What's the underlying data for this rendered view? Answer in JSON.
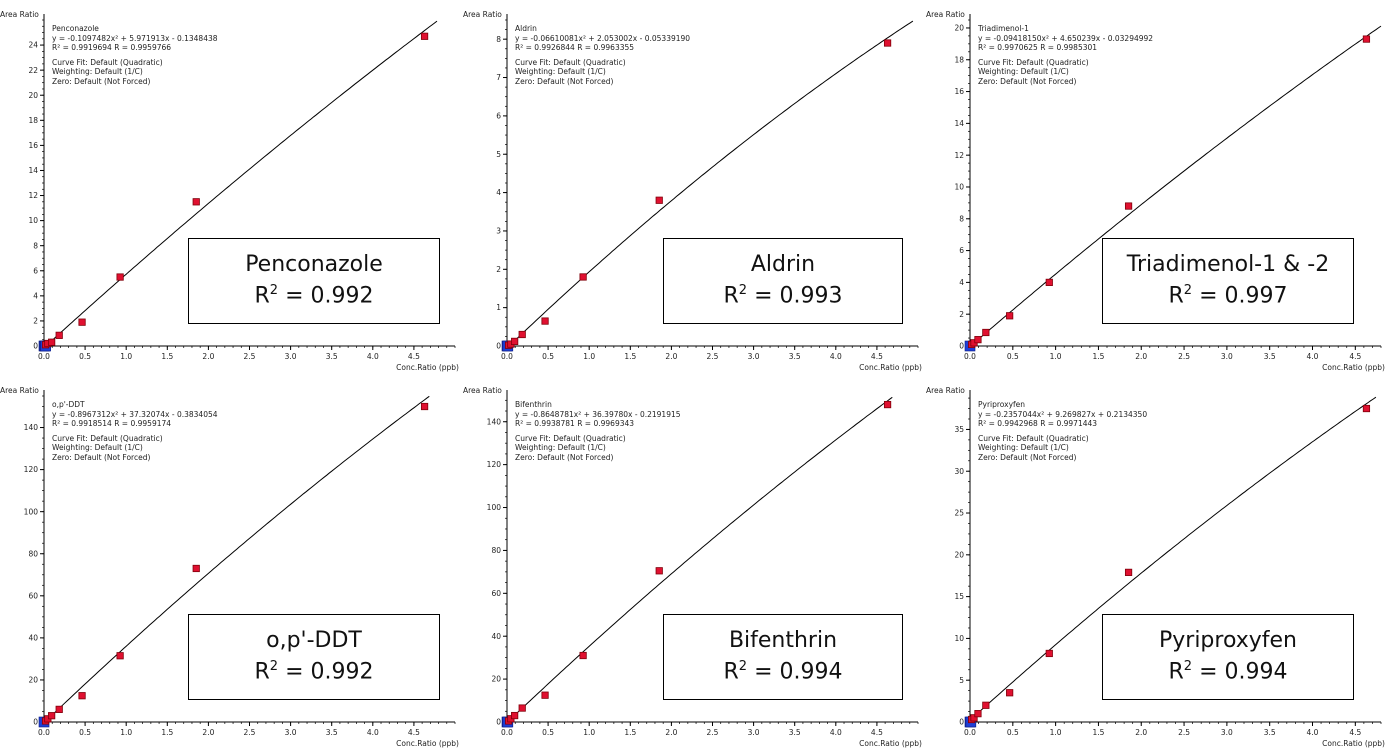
{
  "y_axis_title": "Area Ratio",
  "x_axis_title": "Conc.Ratio (ppb)",
  "fit_lines": [
    "Curve Fit: Default (Quadratic)",
    "Weighting: Default (1/C)",
    "Zero: Default (Not Forced)"
  ],
  "colors": {
    "point_fill": "#e01030",
    "point_stroke": "#80000a",
    "zero_fill": "#1f3fd6",
    "curve": "#000000"
  },
  "chart_data": [
    {
      "type": "scatter",
      "name": "Penconazole",
      "equation": "y = -0.1097482x² + 5.971913x - 0.1348438",
      "r2_line": "R² = 0.9919694   R = 0.9959766",
      "big_label": "Penconazole",
      "big_r2": "= 0.992",
      "coef": [
        -0.1097482,
        5.971913,
        -0.1348438
      ],
      "xlim": [
        0,
        5.0
      ],
      "ylim": [
        0,
        26
      ],
      "xticks": [
        "0.0",
        "0.5",
        "1.0",
        "1.5",
        "2.0",
        "2.5",
        "3.0",
        "3.5",
        "4.0",
        "4.5"
      ],
      "yticks": [
        0,
        2,
        4,
        6,
        8,
        10,
        12,
        14,
        16,
        18,
        20,
        22,
        24
      ],
      "points": [
        [
          0.019,
          0.1
        ],
        [
          0.047,
          0.2
        ],
        [
          0.093,
          0.3
        ],
        [
          0.185,
          0.85
        ],
        [
          0.463,
          1.9
        ],
        [
          0.926,
          5.5
        ],
        [
          1.852,
          11.5
        ],
        [
          4.63,
          24.7
        ]
      ],
      "zero_points": [
        [
          0,
          0
        ],
        [
          0.01,
          0
        ],
        [
          0.02,
          0
        ]
      ]
    },
    {
      "type": "scatter",
      "name": "Aldrin",
      "equation": "y = -0.06610081x² + 2.053002x - 0.05339190",
      "r2_line": "R² = 0.9926844   R = 0.9963355",
      "big_label": "Aldrin",
      "big_r2": "= 0.993",
      "coef": [
        -0.06610081,
        2.053002,
        -0.0533919
      ],
      "xlim": [
        0,
        5.0
      ],
      "ylim": [
        0,
        8.5
      ],
      "xticks": [
        "0.0",
        "0.5",
        "1.0",
        "1.5",
        "2.0",
        "2.5",
        "3.0",
        "3.5",
        "4.0",
        "4.5"
      ],
      "yticks": [
        0,
        1,
        2,
        3,
        4,
        5,
        6,
        7,
        8
      ],
      "points": [
        [
          0.019,
          0.02
        ],
        [
          0.047,
          0.05
        ],
        [
          0.093,
          0.12
        ],
        [
          0.185,
          0.3
        ],
        [
          0.463,
          0.65
        ],
        [
          0.926,
          1.8
        ],
        [
          1.852,
          3.8
        ],
        [
          4.63,
          7.9
        ]
      ],
      "zero_points": [
        [
          0,
          0
        ],
        [
          0.01,
          0
        ]
      ]
    },
    {
      "type": "scatter",
      "name": "Triadimenol-1",
      "equation": "y = -0.09418150x² + 4.650239x - 0.03294992",
      "r2_line": "R² = 0.9970625   R = 0.9985301",
      "big_label": "Triadimenol-1 & -2",
      "big_r2": "= 0.997",
      "coef": [
        -0.0941815,
        4.650239,
        -0.03294992
      ],
      "xlim": [
        0,
        4.8
      ],
      "ylim": [
        0,
        20.5
      ],
      "xticks": [
        "0.0",
        "0.5",
        "1.0",
        "1.5",
        "2.0",
        "2.5",
        "3.0",
        "3.5",
        "4.0",
        "4.5"
      ],
      "yticks": [
        0,
        2,
        4,
        6,
        8,
        10,
        12,
        14,
        16,
        18,
        20
      ],
      "points": [
        [
          0.019,
          0.1
        ],
        [
          0.047,
          0.2
        ],
        [
          0.093,
          0.4
        ],
        [
          0.185,
          0.85
        ],
        [
          0.463,
          1.9
        ],
        [
          0.926,
          4.0
        ],
        [
          1.852,
          8.8
        ],
        [
          4.63,
          19.3
        ]
      ],
      "zero_points": [
        [
          0,
          0
        ]
      ]
    },
    {
      "type": "scatter",
      "name": "o,p'-DDT",
      "equation": "y = -0.8967312x² + 37.32074x - 0.3834054",
      "r2_line": "R² = 0.9918514   R = 0.9959174",
      "big_label": "o,p'-DDT",
      "big_r2": "= 0.992",
      "coef": [
        -0.8967312,
        37.32074,
        -0.3834054
      ],
      "xlim": [
        0,
        5.0
      ],
      "ylim": [
        0,
        155
      ],
      "xticks": [
        "0.0",
        "0.5",
        "1.0",
        "1.5",
        "2.0",
        "2.5",
        "3.0",
        "3.5",
        "4.0",
        "4.5"
      ],
      "yticks": [
        0,
        20,
        40,
        60,
        80,
        100,
        120,
        140
      ],
      "points": [
        [
          0.019,
          0.5
        ],
        [
          0.047,
          1.5
        ],
        [
          0.093,
          3.0
        ],
        [
          0.185,
          6.0
        ],
        [
          0.463,
          12.5
        ],
        [
          0.926,
          31.5
        ],
        [
          1.852,
          73.0
        ],
        [
          4.63,
          150.0
        ]
      ],
      "zero_points": [
        [
          0,
          0
        ]
      ]
    },
    {
      "type": "scatter",
      "name": "Bifenthrin",
      "equation": "y = -0.8648781x² + 36.39780x - 0.2191915",
      "r2_line": "R² = 0.9938781   R = 0.9969343",
      "big_label": "Bifenthrin",
      "big_r2": "= 0.994",
      "coef": [
        -0.8648781,
        36.3978,
        -0.2191915
      ],
      "xlim": [
        0,
        5.0
      ],
      "ylim": [
        0,
        152
      ],
      "xticks": [
        "0.0",
        "0.5",
        "1.0",
        "1.5",
        "2.0",
        "2.5",
        "3.0",
        "3.5",
        "4.0",
        "4.5"
      ],
      "yticks": [
        0,
        20,
        40,
        60,
        80,
        100,
        120,
        140
      ],
      "points": [
        [
          0.019,
          0.5
        ],
        [
          0.047,
          1.5
        ],
        [
          0.093,
          3.0
        ],
        [
          0.185,
          6.5
        ],
        [
          0.463,
          12.5
        ],
        [
          0.926,
          31.0
        ],
        [
          1.852,
          70.5
        ],
        [
          4.63,
          148.0
        ]
      ],
      "zero_points": [
        [
          0,
          0
        ],
        [
          0.01,
          0
        ]
      ]
    },
    {
      "type": "scatter",
      "name": "Pyriproxyfen",
      "equation": "y = -0.2357044x² + 9.269827x + 0.2134350",
      "r2_line": "R² = 0.9942968   R = 0.9971443",
      "big_label": "Pyriproxyfen",
      "big_r2": "= 0.994",
      "coef": [
        -0.2357044,
        9.269827,
        0.213435
      ],
      "xlim": [
        0,
        4.8
      ],
      "ylim": [
        0,
        39
      ],
      "xticks": [
        "0.0",
        "0.5",
        "1.0",
        "1.5",
        "2.0",
        "2.5",
        "3.0",
        "3.5",
        "4.0",
        "4.5"
      ],
      "yticks": [
        0,
        5,
        10,
        15,
        20,
        25,
        30,
        35
      ],
      "points": [
        [
          0.019,
          0.3
        ],
        [
          0.047,
          0.5
        ],
        [
          0.093,
          1.0
        ],
        [
          0.185,
          2.0
        ],
        [
          0.463,
          3.5
        ],
        [
          0.926,
          8.2
        ],
        [
          1.852,
          17.9
        ],
        [
          4.63,
          37.5
        ]
      ],
      "zero_points": [
        [
          0,
          0
        ],
        [
          0.01,
          0
        ]
      ]
    }
  ]
}
